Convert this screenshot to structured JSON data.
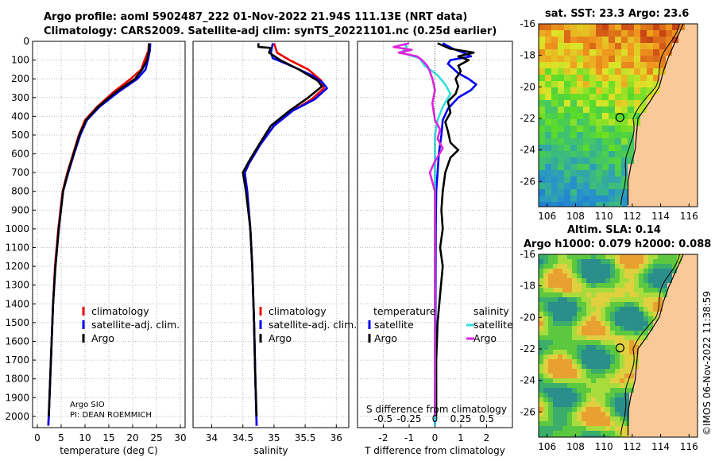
{
  "header": {
    "line1": "Argo profile: aoml 5902487_222 01-Nov-2022 21.94S 111.13E (NRT data)",
    "line2": "Climatology: CARS2009. Satellite-adj clim: synTS_20221101.nc (0.25d earlier)"
  },
  "chart_data": [
    {
      "type": "line",
      "name": "temperature-profile",
      "xlabel": "temperature (deg C)",
      "ylabel": "",
      "xlim": [
        -1,
        31
      ],
      "ylim": [
        2060,
        0
      ],
      "xticks": [
        0,
        5,
        10,
        15,
        20,
        25,
        30
      ],
      "yticks": [
        0,
        100,
        200,
        300,
        400,
        500,
        600,
        700,
        800,
        900,
        1000,
        1100,
        1200,
        1300,
        1400,
        1500,
        1600,
        1700,
        1800,
        1900,
        2000
      ],
      "grid": true,
      "legend": [
        "climatology",
        "satellite-adj. clim.",
        "Argo"
      ],
      "annotation": [
        "Argo SIO",
        "PI: DEAN ROEMMICH"
      ],
      "series": [
        {
          "name": "climatology",
          "color": "#ee0000",
          "points": [
            [
              23.4,
              10
            ],
            [
              23.3,
              50
            ],
            [
              22.5,
              100
            ],
            [
              21.8,
              150
            ],
            [
              19.6,
              200
            ],
            [
              16,
              270
            ],
            [
              12.5,
              350
            ],
            [
              10,
              420
            ],
            [
              8.7,
              500
            ],
            [
              7.5,
              600
            ],
            [
              6.3,
              700
            ],
            [
              5.3,
              800
            ],
            [
              4.4,
              1000
            ],
            [
              3.7,
              1200
            ],
            [
              3.3,
              1400
            ],
            [
              3,
              1600
            ],
            [
              2.7,
              1800
            ],
            [
              2.4,
              2000
            ],
            [
              2.3,
              2050
            ]
          ]
        },
        {
          "name": "satellite-adj. clim.",
          "color": "#0000ee",
          "points": [
            [
              23.7,
              10
            ],
            [
              23.6,
              50
            ],
            [
              23.2,
              100
            ],
            [
              22.7,
              150
            ],
            [
              21,
              200
            ],
            [
              17,
              270
            ],
            [
              13,
              350
            ],
            [
              10.4,
              420
            ],
            [
              9,
              500
            ],
            [
              7.7,
              600
            ],
            [
              6.5,
              700
            ],
            [
              5.4,
              800
            ],
            [
              4.5,
              1000
            ],
            [
              3.8,
              1200
            ],
            [
              3.3,
              1400
            ],
            [
              3,
              1600
            ],
            [
              2.7,
              1800
            ],
            [
              2.4,
              2000
            ],
            [
              2.3,
              2050
            ]
          ]
        },
        {
          "name": "Argo",
          "color": "#000000",
          "points": [
            [
              23.5,
              10
            ],
            [
              23.4,
              50
            ],
            [
              23,
              100
            ],
            [
              22,
              150
            ],
            [
              20.5,
              200
            ],
            [
              16.5,
              270
            ],
            [
              12.7,
              350
            ],
            [
              10.2,
              420
            ],
            [
              8.8,
              500
            ],
            [
              7.6,
              600
            ],
            [
              6.4,
              700
            ],
            [
              5.4,
              800
            ],
            [
              4.5,
              1000
            ],
            [
              3.8,
              1200
            ],
            [
              3.3,
              1400
            ],
            [
              3,
              1600
            ],
            [
              2.7,
              1800
            ],
            [
              2.4,
              2000
            ]
          ]
        }
      ]
    },
    {
      "type": "line",
      "name": "salinity-profile",
      "xlabel": "salinity",
      "xlim": [
        33.7,
        36.2
      ],
      "ylim": [
        2060,
        0
      ],
      "xticks": [
        34,
        34.5,
        35,
        35.5,
        36
      ],
      "grid": true,
      "legend": [
        "climatology",
        "satellite-adj. clim.",
        "Argo"
      ],
      "series": [
        {
          "name": "climatology",
          "color": "#ee0000",
          "points": [
            [
              35.0,
              10
            ],
            [
              35.05,
              60
            ],
            [
              35.25,
              100
            ],
            [
              35.55,
              150
            ],
            [
              35.76,
              210
            ],
            [
              35.8,
              250
            ],
            [
              35.6,
              310
            ],
            [
              35.3,
              370
            ],
            [
              35.0,
              450
            ],
            [
              34.78,
              550
            ],
            [
              34.6,
              650
            ],
            [
              34.53,
              700
            ],
            [
              34.57,
              800
            ],
            [
              34.62,
              1000
            ],
            [
              34.65,
              1200
            ],
            [
              34.68,
              1500
            ],
            [
              34.7,
              1800
            ],
            [
              34.72,
              2050
            ]
          ]
        },
        {
          "name": "satellite-adj. clim.",
          "color": "#0000ee",
          "points": [
            [
              34.98,
              10
            ],
            [
              34.95,
              60
            ],
            [
              34.98,
              90
            ],
            [
              35.2,
              120
            ],
            [
              35.6,
              180
            ],
            [
              35.78,
              220
            ],
            [
              35.85,
              250
            ],
            [
              35.65,
              310
            ],
            [
              35.3,
              370
            ],
            [
              35.0,
              450
            ],
            [
              34.78,
              550
            ],
            [
              34.6,
              650
            ],
            [
              34.53,
              700
            ],
            [
              34.57,
              800
            ],
            [
              34.62,
              1000
            ],
            [
              34.65,
              1200
            ],
            [
              34.68,
              1500
            ],
            [
              34.7,
              1800
            ],
            [
              34.72,
              2050
            ]
          ]
        },
        {
          "name": "Argo",
          "color": "#000000",
          "points": [
            [
              34.75,
              10
            ],
            [
              34.75,
              30
            ],
            [
              34.95,
              35
            ],
            [
              34.92,
              60
            ],
            [
              35.1,
              100
            ],
            [
              35.4,
              150
            ],
            [
              35.7,
              210
            ],
            [
              35.77,
              240
            ],
            [
              35.55,
              300
            ],
            [
              35.25,
              370
            ],
            [
              34.95,
              450
            ],
            [
              34.76,
              550
            ],
            [
              34.58,
              650
            ],
            [
              34.5,
              700
            ],
            [
              34.55,
              800
            ],
            [
              34.62,
              1000
            ],
            [
              34.65,
              1200
            ],
            [
              34.68,
              1500
            ],
            [
              34.7,
              1800
            ],
            [
              34.72,
              2000
            ]
          ]
        }
      ]
    },
    {
      "type": "line",
      "name": "difference-profile",
      "xlabel": "T difference from climatology",
      "xlabel_top": "S difference from climatology",
      "xlim": [
        -3,
        3
      ],
      "ylim": [
        2060,
        0
      ],
      "xticks": [
        -2,
        -1,
        0,
        1,
        2
      ],
      "s_ticks": [
        "-0.5",
        "-0.25",
        "0",
        "0.25",
        "0.5"
      ],
      "grid": true,
      "legend_left_title": "temperature",
      "legend_right_title": "salinity",
      "legend_left": [
        "satellite",
        "Argo"
      ],
      "legend_right": [
        "satellite",
        "Argo"
      ],
      "series": [
        {
          "name": "T satellite",
          "color": "#0000ee",
          "points": [
            [
              0.3,
              10
            ],
            [
              0.7,
              40
            ],
            [
              1.1,
              60
            ],
            [
              1.4,
              80
            ],
            [
              0.6,
              100
            ],
            [
              0.5,
              120
            ],
            [
              0.9,
              170
            ],
            [
              1.3,
              200
            ],
            [
              1.6,
              230
            ],
            [
              1.4,
              260
            ],
            [
              0.9,
              300
            ],
            [
              0.5,
              360
            ],
            [
              0.3,
              420
            ],
            [
              0.25,
              500
            ],
            [
              0.15,
              600
            ],
            [
              0.1,
              700
            ],
            [
              0.05,
              800
            ],
            [
              0.03,
              1000
            ],
            [
              0.02,
              1500
            ],
            [
              0.0,
              2000
            ],
            [
              0.0,
              2050
            ]
          ]
        },
        {
          "name": "T Argo",
          "color": "#000000",
          "points": [
            [
              0.1,
              10
            ],
            [
              0.6,
              40
            ],
            [
              1.5,
              60
            ],
            [
              0.9,
              80
            ],
            [
              1.3,
              100
            ],
            [
              0.9,
              130
            ],
            [
              1.0,
              160
            ],
            [
              0.8,
              200
            ],
            [
              0.9,
              240
            ],
            [
              0.8,
              280
            ],
            [
              0.5,
              320
            ],
            [
              0.6,
              380
            ],
            [
              0.4,
              430
            ],
            [
              0.5,
              480
            ],
            [
              0.6,
              540
            ],
            [
              0.9,
              580
            ],
            [
              0.6,
              620
            ],
            [
              0.4,
              700
            ],
            [
              0.3,
              800
            ],
            [
              0.25,
              900
            ],
            [
              0.3,
              1000
            ],
            [
              0.2,
              1100
            ],
            [
              0.3,
              1200
            ],
            [
              0.2,
              1350
            ],
            [
              0.1,
              1500
            ],
            [
              0.05,
              1700
            ],
            [
              0.05,
              2000
            ]
          ]
        },
        {
          "name": "S satellite",
          "color": "#33dddd",
          "points": [
            [
              -1.2,
              10
            ],
            [
              -1.1,
              30
            ],
            [
              -1.3,
              60
            ],
            [
              -0.6,
              90
            ],
            [
              -0.4,
              130
            ],
            [
              0.1,
              180
            ],
            [
              0.4,
              230
            ],
            [
              0.6,
              280
            ],
            [
              0.3,
              350
            ],
            [
              0.1,
              420
            ],
            [
              0.0,
              500
            ],
            [
              0.0,
              700
            ],
            [
              0.0,
              1000
            ],
            [
              0.0,
              1500
            ],
            [
              0.0,
              2050
            ]
          ]
        },
        {
          "name": "S Argo",
          "color": "#dd22dd",
          "points": [
            [
              -1.0,
              10
            ],
            [
              -1.6,
              30
            ],
            [
              -0.9,
              45
            ],
            [
              -1.4,
              60
            ],
            [
              -0.7,
              80
            ],
            [
              -0.5,
              100
            ],
            [
              -0.3,
              130
            ],
            [
              -0.2,
              160
            ],
            [
              -0.1,
              200
            ],
            [
              0.0,
              260
            ],
            [
              -0.1,
              330
            ],
            [
              0.0,
              420
            ],
            [
              0.2,
              470
            ],
            [
              0.1,
              520
            ],
            [
              0.3,
              570
            ],
            [
              0.0,
              640
            ],
            [
              -0.2,
              700
            ],
            [
              0.0,
              800
            ],
            [
              0.0,
              1000
            ],
            [
              0.0,
              1500
            ],
            [
              0.0,
              2000
            ]
          ]
        }
      ]
    },
    {
      "type": "heatmap",
      "name": "sst-map",
      "title": "sat. SST: 23.3 Argo: 23.6",
      "xticks": [
        106,
        108,
        110,
        112,
        114,
        116
      ],
      "yticks": [
        -16,
        -18,
        -20,
        -22,
        -24,
        -26
      ],
      "xlim": [
        105.4,
        116.6
      ],
      "ylim": [
        -27.6,
        -16
      ],
      "marker": {
        "lon": 111.13,
        "lat": -21.94
      }
    },
    {
      "type": "heatmap",
      "name": "sla-map",
      "title": "Altim. SLA: 0.14",
      "subtitle": "Argo h1000: 0.079 h2000: 0.088",
      "xticks": [
        106,
        108,
        110,
        112,
        114,
        116
      ],
      "yticks": [
        -16,
        -18,
        -20,
        -22,
        -24,
        -26
      ],
      "xlim": [
        105.4,
        116.6
      ],
      "ylim": [
        -27.6,
        -16
      ],
      "marker": {
        "lon": 111.13,
        "lat": -21.94
      }
    }
  ],
  "credit": "©IMOS 06-Nov-2022 11:38:59",
  "colors": {
    "land": "#f9c99a",
    "coast": "#000000",
    "grid": "#bbbbbb"
  }
}
